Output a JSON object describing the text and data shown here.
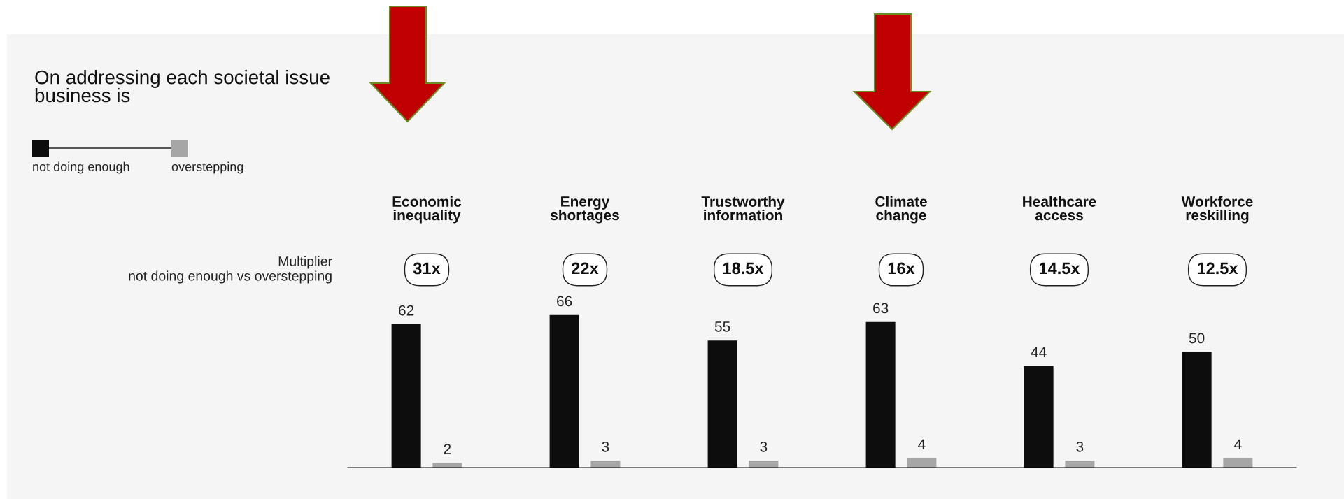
{
  "chart_data": {
    "type": "bar",
    "title": "On addressing each societal issue\nbusiness is",
    "categories": [
      "Economic\ninequality",
      "Energy\nshortages",
      "Trustworthy\ninformation",
      "Climate\nchange",
      "Healthcare\naccess",
      "Workforce\nreskilling"
    ],
    "series": [
      {
        "name": "not doing enough",
        "color": "#0d0d0d",
        "values": [
          62,
          66,
          55,
          63,
          44,
          50
        ]
      },
      {
        "name": "overstepping",
        "color": "#a6a6a6",
        "values": [
          2,
          3,
          3,
          4,
          3,
          4
        ]
      }
    ],
    "data_labels": true,
    "legend": "top left",
    "annotations": [
      "Multiplier\nnot doing enough vs overstepping",
      "31x",
      "22x",
      "18.5x",
      "16x",
      "14.5x",
      "12.5x"
    ]
  }
}
